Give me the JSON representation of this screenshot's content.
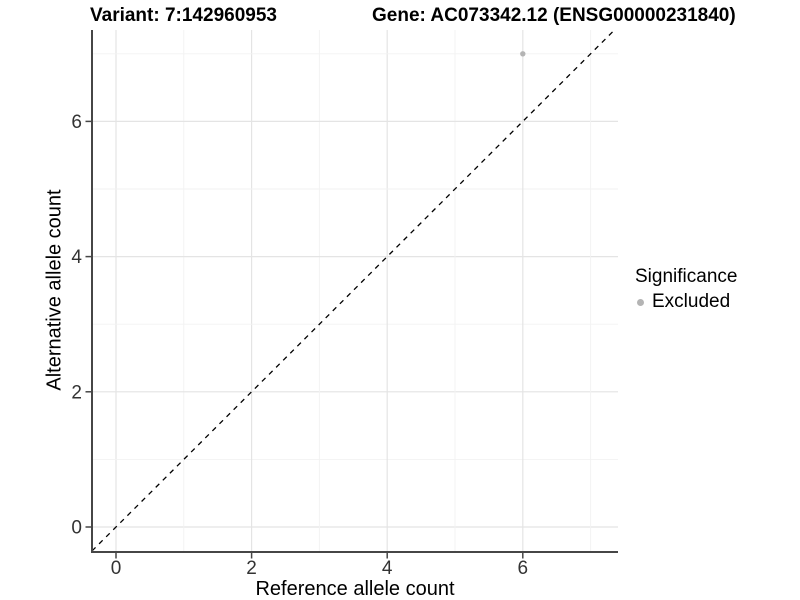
{
  "titles": {
    "variant": "Variant: 7:142960953",
    "gene": "Gene: AC073342.12 (ENSG00000231840)"
  },
  "colors": {
    "point": "#b4b4b4",
    "grid_major": "#e4e4e4",
    "grid_minor": "#f2f2f2",
    "axis_line": "#464646",
    "tick_label": "#333333",
    "dashed_line": "#000000",
    "background": "#ffffff"
  },
  "chart_data": {
    "type": "scatter",
    "title_left": "Variant: 7:142960953",
    "title_right": "Gene: AC073342.12 (ENSG00000231840)",
    "xlabel": "Reference allele count",
    "ylabel": "Alternative allele count",
    "xlim": [
      -0.35,
      7.4
    ],
    "ylim": [
      -0.37,
      7.35
    ],
    "x_ticks": [
      0,
      2,
      4,
      6
    ],
    "y_ticks": [
      0,
      2,
      4,
      6
    ],
    "grid_lines_at": [
      0,
      1,
      2,
      3,
      4,
      5,
      6,
      7
    ],
    "grid": true,
    "points": [
      {
        "x": 6,
        "y": 7,
        "series": "Excluded"
      }
    ],
    "reference_line": {
      "type": "identity",
      "equation": "y = x",
      "style": "dashed"
    },
    "legend": {
      "position": "right",
      "title": "Significance",
      "items": [
        {
          "label": "Excluded",
          "color": "#b4b4b4",
          "marker": "dot"
        }
      ]
    }
  }
}
